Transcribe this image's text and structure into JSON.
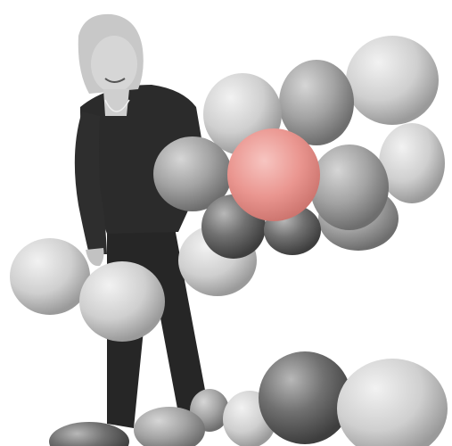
{
  "scene": {
    "subject": "person-with-balloons",
    "palette": {
      "background": "#ffffff",
      "highlight_balloon": "#e9928c",
      "shirt": "#2b2b2b",
      "pants": "#262626",
      "hair": "#cfcfcf",
      "skin": "#c9c9c9",
      "balloon_light": "#d8d8d8",
      "balloon_mid": "#a9a9a9",
      "balloon_dark": "#6a6a6a"
    }
  }
}
